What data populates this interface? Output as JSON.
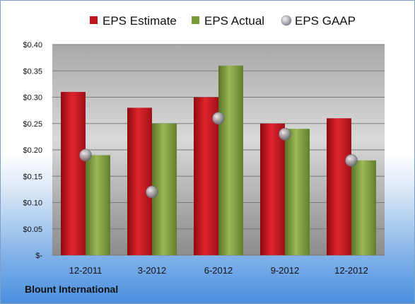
{
  "company": "Blount International",
  "colors": {
    "estimate": "#c0141c",
    "actual": "#7a9a3a",
    "gaap": "#a8a8b0",
    "plot_bg": "#bfbfbf"
  },
  "chart_data": {
    "type": "bar",
    "categories": [
      "12-2011",
      "3-2012",
      "6-2012",
      "9-2012",
      "12-2012"
    ],
    "series": [
      {
        "name": "EPS Estimate",
        "kind": "bar",
        "values": [
          0.31,
          0.28,
          0.3,
          0.25,
          0.26
        ]
      },
      {
        "name": "EPS Actual",
        "kind": "bar",
        "values": [
          0.19,
          0.25,
          0.36,
          0.24,
          0.18
        ]
      },
      {
        "name": "EPS GAAP",
        "kind": "marker",
        "values": [
          0.19,
          0.12,
          0.26,
          0.23,
          0.18
        ]
      }
    ],
    "ylim": [
      0,
      0.4
    ],
    "yticks": [
      0,
      0.05,
      0.1,
      0.15,
      0.2,
      0.25,
      0.3,
      0.35,
      0.4
    ],
    "ytick_labels": [
      "$-",
      "$0.05",
      "$0.10",
      "$0.15",
      "$0.20",
      "$0.25",
      "$0.30",
      "$0.35",
      "$0.40"
    ],
    "grid": true,
    "legend": "top"
  }
}
